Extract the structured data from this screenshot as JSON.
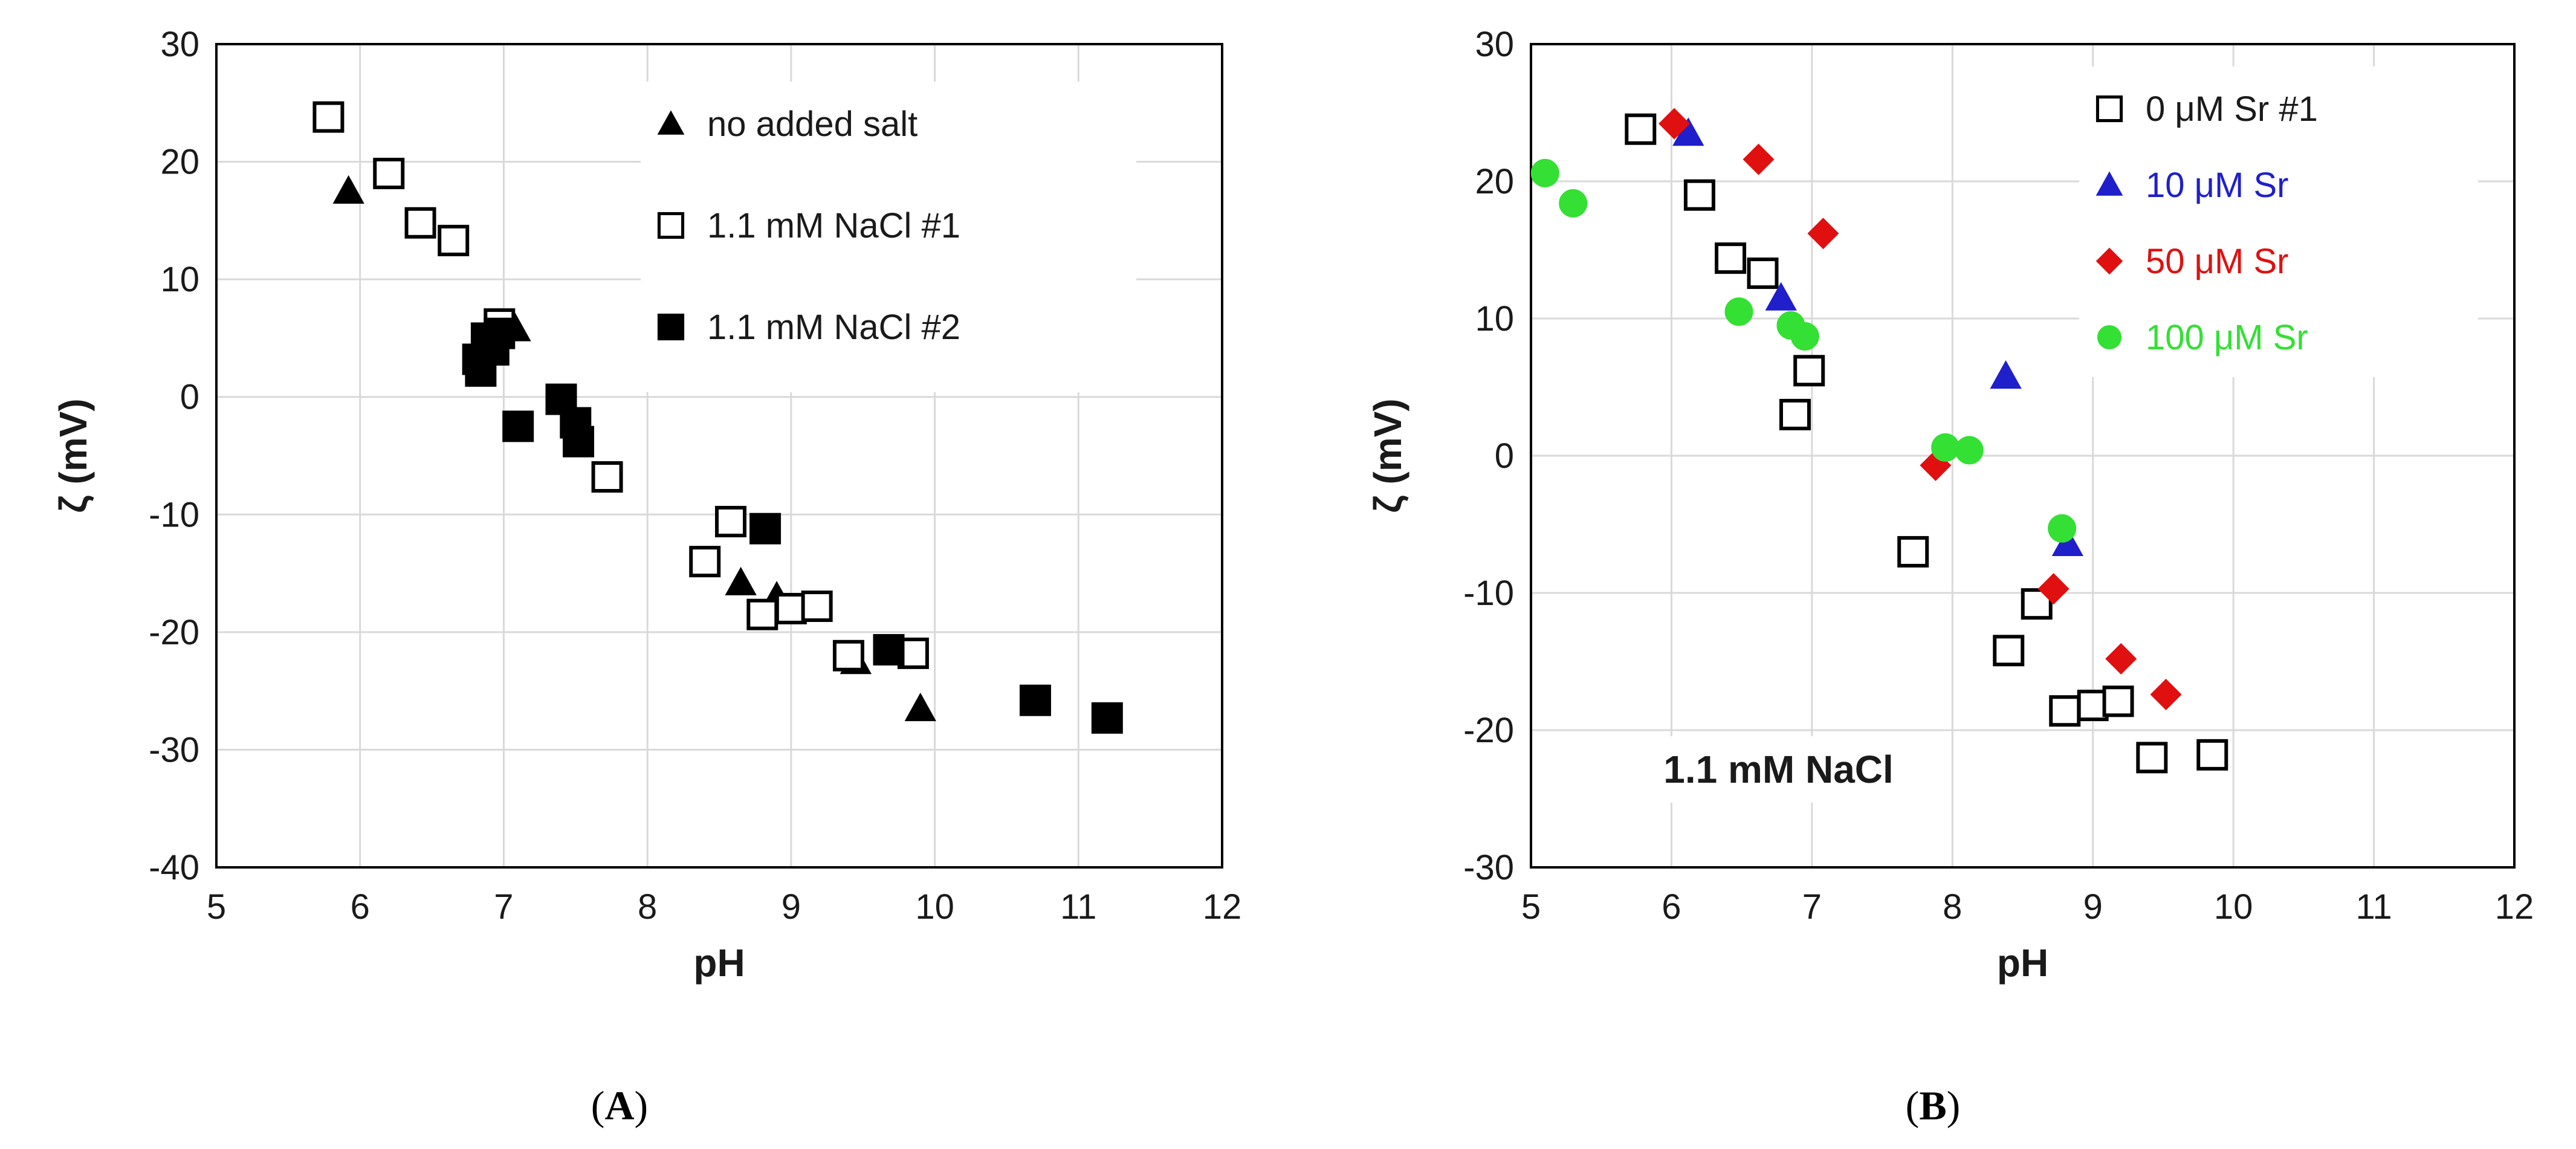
{
  "panels": [
    {
      "label_open": "(",
      "label_letter": "A",
      "label_close": ")"
    },
    {
      "label_open": "(",
      "label_letter": "B",
      "label_close": ")"
    }
  ],
  "chart_data": [
    {
      "type": "scatter",
      "id": "A",
      "title": "",
      "xlabel": "pH",
      "ylabel": "ζ (mV)",
      "xlim": [
        5,
        12
      ],
      "ylim": [
        -40,
        30
      ],
      "xticks": [
        5,
        6,
        7,
        8,
        9,
        10,
        11,
        12
      ],
      "yticks": [
        -40,
        -30,
        -20,
        -10,
        0,
        10,
        20,
        30
      ],
      "grid": true,
      "legend_position": "top-right",
      "annotations": [],
      "series": [
        {
          "name": "no added salt",
          "marker": "triangle",
          "color": "#000000",
          "fill": true,
          "points": [
            [
              5.92,
              17.5
            ],
            [
              7.08,
              5.8
            ],
            [
              8.65,
              -15.8
            ],
            [
              8.9,
              -17
            ],
            [
              9.45,
              -22.5
            ],
            [
              9.9,
              -26.5
            ]
          ]
        },
        {
          "name": "1.1 mM NaCl #1",
          "marker": "square",
          "color": "#000000",
          "fill": false,
          "points": [
            [
              5.78,
              23.8
            ],
            [
              6.2,
              19
            ],
            [
              6.42,
              14.8
            ],
            [
              6.65,
              13.3
            ],
            [
              6.97,
              6.2
            ],
            [
              7.72,
              -6.8
            ],
            [
              8.4,
              -14
            ],
            [
              8.58,
              -10.6
            ],
            [
              8.8,
              -18.5
            ],
            [
              9.0,
              -18
            ],
            [
              9.18,
              -17.8
            ],
            [
              9.4,
              -22
            ],
            [
              9.85,
              -21.8
            ]
          ]
        },
        {
          "name": "1.1 mM NaCl #2",
          "marker": "square",
          "color": "#000000",
          "fill": true,
          "points": [
            [
              6.82,
              3.2
            ],
            [
              6.84,
              2.2
            ],
            [
              6.88,
              5.0
            ],
            [
              6.93,
              4.0
            ],
            [
              6.97,
              5.4
            ],
            [
              7.1,
              -2.5
            ],
            [
              7.4,
              -0.2
            ],
            [
              7.5,
              -2.2
            ],
            [
              7.52,
              -3.8
            ],
            [
              8.82,
              -11.2
            ],
            [
              9.68,
              -21.5
            ],
            [
              10.7,
              -25.8
            ],
            [
              11.2,
              -27.3
            ]
          ]
        }
      ]
    },
    {
      "type": "scatter",
      "id": "B",
      "title": "",
      "xlabel": "pH",
      "ylabel": "ζ (mV)",
      "xlim": [
        5,
        12
      ],
      "ylim": [
        -30,
        30
      ],
      "xticks": [
        5,
        6,
        7,
        8,
        9,
        10,
        11,
        12
      ],
      "yticks": [
        -30,
        -20,
        -10,
        0,
        10,
        20,
        30
      ],
      "grid": true,
      "legend_position": "top-right",
      "annotations": [
        {
          "text": "1.1 mM NaCl",
          "position": "bottom-left"
        }
      ],
      "series": [
        {
          "name": "0 μM Sr #1",
          "marker": "square",
          "color": "#000000",
          "fill": false,
          "points": [
            [
              5.78,
              23.8
            ],
            [
              6.2,
              19
            ],
            [
              6.42,
              14.4
            ],
            [
              6.65,
              13.3
            ],
            [
              6.88,
              3.0
            ],
            [
              6.98,
              6.2
            ],
            [
              7.72,
              -7.0
            ],
            [
              8.4,
              -14.2
            ],
            [
              8.6,
              -10.8
            ],
            [
              8.8,
              -18.6
            ],
            [
              9.0,
              -18.2
            ],
            [
              9.18,
              -17.9
            ],
            [
              9.42,
              -22.0
            ],
            [
              9.85,
              -21.8
            ]
          ]
        },
        {
          "name": "10 μM Sr",
          "marker": "triangle",
          "color": "#1f1fcc",
          "fill": true,
          "points": [
            [
              6.12,
              23.5
            ],
            [
              6.78,
              11.5
            ],
            [
              8.38,
              5.8
            ],
            [
              8.82,
              -6.4
            ]
          ]
        },
        {
          "name": "50 μM Sr",
          "marker": "diamond",
          "color": "#e01010",
          "fill": true,
          "points": [
            [
              6.02,
              24.2
            ],
            [
              6.62,
              21.6
            ],
            [
              7.08,
              16.2
            ],
            [
              7.88,
              -0.7
            ],
            [
              8.72,
              -9.7
            ],
            [
              9.2,
              -14.8
            ],
            [
              9.52,
              -17.4
            ]
          ]
        },
        {
          "name": "100 μM Sr",
          "marker": "circle",
          "color": "#33e033",
          "fill": true,
          "points": [
            [
              5.1,
              20.6
            ],
            [
              5.3,
              18.4
            ],
            [
              6.48,
              10.5
            ],
            [
              6.85,
              9.5
            ],
            [
              6.95,
              8.7
            ],
            [
              7.95,
              0.6
            ],
            [
              8.12,
              0.4
            ],
            [
              8.78,
              -5.3
            ]
          ]
        }
      ]
    }
  ]
}
